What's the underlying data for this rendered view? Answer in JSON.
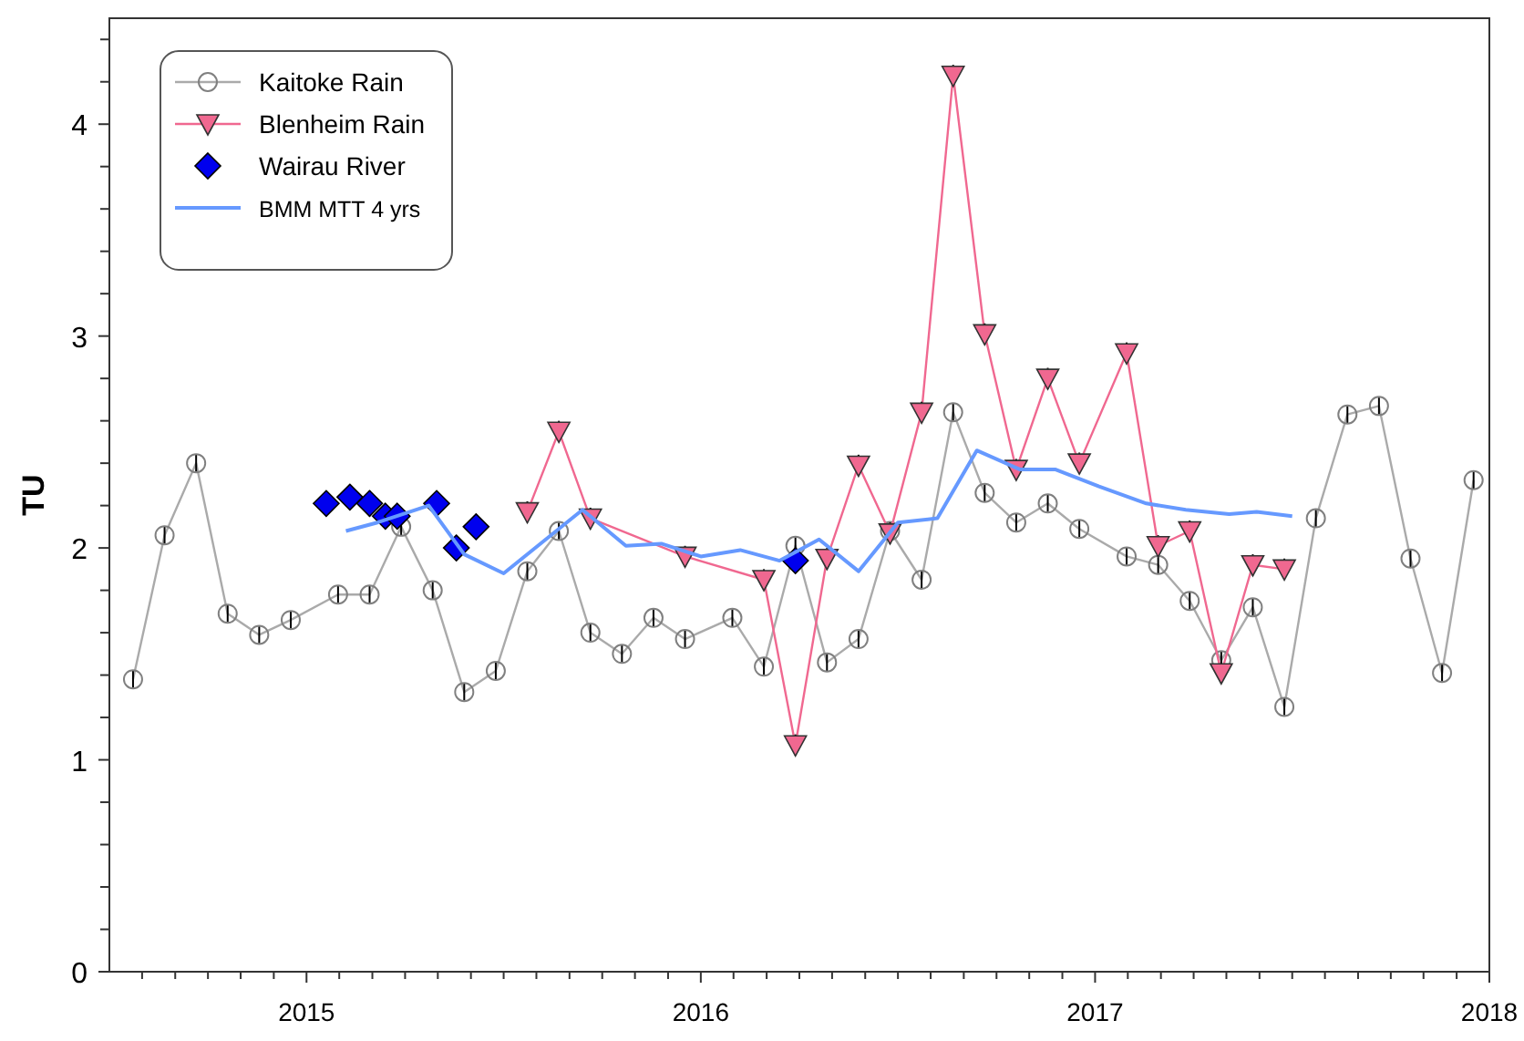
{
  "chart_data": {
    "type": "line",
    "ylabel": "TU",
    "xlim": [
      2014.5,
      2018
    ],
    "ylim": [
      0,
      4.5
    ],
    "xticks": [
      {
        "value": 2014.583,
        "label": null
      },
      {
        "value": 2014.667,
        "label": null
      },
      {
        "value": 2014.75,
        "label": null
      },
      {
        "value": 2014.833,
        "label": null
      },
      {
        "value": 2014.917,
        "label": null
      },
      2015,
      {
        "value": 2015.083,
        "label": null
      },
      {
        "value": 2015.167,
        "label": null
      },
      {
        "value": 2015.25,
        "label": null
      },
      {
        "value": 2015.333,
        "label": null
      },
      {
        "value": 2015.417,
        "label": null
      },
      {
        "value": 2015.5,
        "label": null
      },
      {
        "value": 2015.583,
        "label": null
      },
      {
        "value": 2015.667,
        "label": null
      },
      {
        "value": 2015.75,
        "label": null
      },
      {
        "value": 2015.833,
        "label": null
      },
      {
        "value": 2015.917,
        "label": null
      },
      2016,
      {
        "value": 2016.083,
        "label": null
      },
      {
        "value": 2016.167,
        "label": null
      },
      {
        "value": 2016.25,
        "label": null
      },
      {
        "value": 2016.333,
        "label": null
      },
      {
        "value": 2016.417,
        "label": null
      },
      {
        "value": 2016.5,
        "label": null
      },
      {
        "value": 2016.583,
        "label": null
      },
      {
        "value": 2016.667,
        "label": null
      },
      {
        "value": 2016.75,
        "label": null
      },
      {
        "value": 2016.833,
        "label": null
      },
      {
        "value": 2016.917,
        "label": null
      },
      2017,
      {
        "value": 2017.083,
        "label": null
      },
      {
        "value": 2017.167,
        "label": null
      },
      {
        "value": 2017.25,
        "label": null
      },
      {
        "value": 2017.333,
        "label": null
      },
      {
        "value": 2017.417,
        "label": null
      },
      {
        "value": 2017.5,
        "label": null
      },
      {
        "value": 2017.583,
        "label": null
      },
      {
        "value": 2017.667,
        "label": null
      },
      {
        "value": 2017.75,
        "label": null
      },
      {
        "value": 2017.833,
        "label": null
      },
      {
        "value": 2017.917,
        "label": null
      },
      2018
    ],
    "yticks": [
      0,
      {
        "value": 0.2,
        "label": null
      },
      {
        "value": 0.4,
        "label": null
      },
      {
        "value": 0.6,
        "label": null
      },
      {
        "value": 0.8,
        "label": null
      },
      1,
      {
        "value": 1.2,
        "label": null
      },
      {
        "value": 1.4,
        "label": null
      },
      {
        "value": 1.6,
        "label": null
      },
      {
        "value": 1.8,
        "label": null
      },
      2,
      {
        "value": 2.2,
        "label": null
      },
      {
        "value": 2.4,
        "label": null
      },
      {
        "value": 2.6,
        "label": null
      },
      {
        "value": 2.8,
        "label": null
      },
      3,
      {
        "value": 3.2,
        "label": null
      },
      {
        "value": 3.4,
        "label": null
      },
      {
        "value": 3.6,
        "label": null
      },
      {
        "value": 3.8,
        "label": null
      },
      4,
      {
        "value": 4.2,
        "label": null
      },
      {
        "value": 4.4,
        "label": null
      }
    ],
    "grid": false,
    "legend": "top left",
    "series": [
      {
        "name": "Kaitoke Rain",
        "marker": "circle",
        "color": "#aaaaaa",
        "x": [
          2014.56,
          2014.64,
          2014.72,
          2014.8,
          2014.88,
          2014.96,
          2015.08,
          2015.16,
          2015.24,
          2015.32,
          2015.4,
          2015.48,
          2015.56,
          2015.64,
          2015.72,
          2015.8,
          2015.88,
          2015.96,
          2016.08,
          2016.16,
          2016.24,
          2016.32,
          2016.4,
          2016.48,
          2016.56,
          2016.64,
          2016.72,
          2016.8,
          2016.88,
          2016.96,
          2017.08,
          2017.16,
          2017.24,
          2017.32,
          2017.4,
          2017.48,
          2017.56,
          2017.64,
          2017.72,
          2017.8,
          2017.88,
          2017.96
        ],
        "values": [
          1.38,
          2.06,
          2.4,
          1.69,
          1.59,
          1.66,
          1.78,
          1.78,
          2.1,
          1.8,
          1.32,
          1.42,
          1.89,
          2.08,
          1.6,
          1.5,
          1.67,
          1.57,
          1.67,
          1.44,
          2.01,
          1.46,
          1.57,
          2.08,
          1.85,
          2.64,
          2.26,
          2.12,
          2.21,
          2.09,
          1.96,
          1.92,
          1.75,
          1.47,
          1.72,
          1.25,
          2.14,
          2.63,
          2.67,
          1.95,
          1.41,
          2.32
        ],
        "errors": [
          0.04,
          0.04,
          0.04,
          0.04,
          0.04,
          0.04,
          0.04,
          0.04,
          0.04,
          0.04,
          0.04,
          0.04,
          0.04,
          0.04,
          0.04,
          0.04,
          0.04,
          0.04,
          0.04,
          0.04,
          0.04,
          0.04,
          0.04,
          0.04,
          0.04,
          0.04,
          0.04,
          0.04,
          0.04,
          0.04,
          0.04,
          0.04,
          0.04,
          0.04,
          0.04,
          0.04,
          0.04,
          0.04,
          0.04,
          0.04,
          0.04,
          0.04
        ]
      },
      {
        "name": "Blenheim Rain",
        "marker": "triangle",
        "color": "#f06890",
        "x": [
          2015.56,
          2015.64,
          2015.72,
          2015.96,
          2016.16,
          2016.24,
          2016.32,
          2016.4,
          2016.48,
          2016.56,
          2016.64,
          2016.72,
          2016.8,
          2016.88,
          2016.96,
          2017.08,
          2017.16,
          2017.24,
          2017.32,
          2017.4,
          2017.48
        ],
        "values": [
          2.17,
          2.55,
          2.14,
          1.96,
          1.85,
          1.07,
          1.95,
          2.39,
          2.07,
          2.64,
          4.23,
          3.01,
          2.37,
          2.8,
          2.4,
          2.92,
          2.01,
          2.08,
          1.41,
          1.92,
          1.9
        ],
        "errors": [
          0.05,
          0.05,
          0.05,
          0.05,
          0.05,
          0.05,
          0.05,
          0.05,
          0.05,
          0.05,
          0.05,
          0.05,
          0.05,
          0.05,
          0.05,
          0.05,
          0.05,
          0.05,
          0.05,
          0.05,
          0.05
        ]
      },
      {
        "name": "Wairau River",
        "type": "scatter",
        "marker": "diamond",
        "color": "#0000ee",
        "x": [
          2015.05,
          2015.11,
          2015.16,
          2015.2,
          2015.23,
          2015.33,
          2015.38,
          2015.43,
          2016.24
        ],
        "values": [
          2.21,
          2.24,
          2.21,
          2.15,
          2.15,
          2.21,
          2.0,
          2.1,
          1.94
        ],
        "errors": [
          0.06,
          0.06,
          0.06,
          0.06,
          0.06,
          0.06,
          0.06,
          0.06,
          0.06
        ]
      },
      {
        "name": "BMM MTT 4 yrs",
        "marker": "none",
        "color": "#6699ff",
        "x": [
          2015.1,
          2015.18,
          2015.31,
          2015.4,
          2015.5,
          2015.7,
          2015.81,
          2015.9,
          2016.0,
          2016.1,
          2016.2,
          2016.3,
          2016.4,
          2016.5,
          2016.6,
          2016.7,
          2016.81,
          2016.9,
          2017.01,
          2017.13,
          2017.23,
          2017.34,
          2017.41,
          2017.5
        ],
        "values": [
          2.08,
          2.12,
          2.2,
          1.97,
          1.88,
          2.18,
          2.01,
          2.02,
          1.96,
          1.99,
          1.94,
          2.04,
          1.89,
          2.12,
          2.14,
          2.46,
          2.37,
          2.37,
          2.29,
          2.21,
          2.18,
          2.16,
          2.17,
          2.15
        ]
      }
    ]
  }
}
